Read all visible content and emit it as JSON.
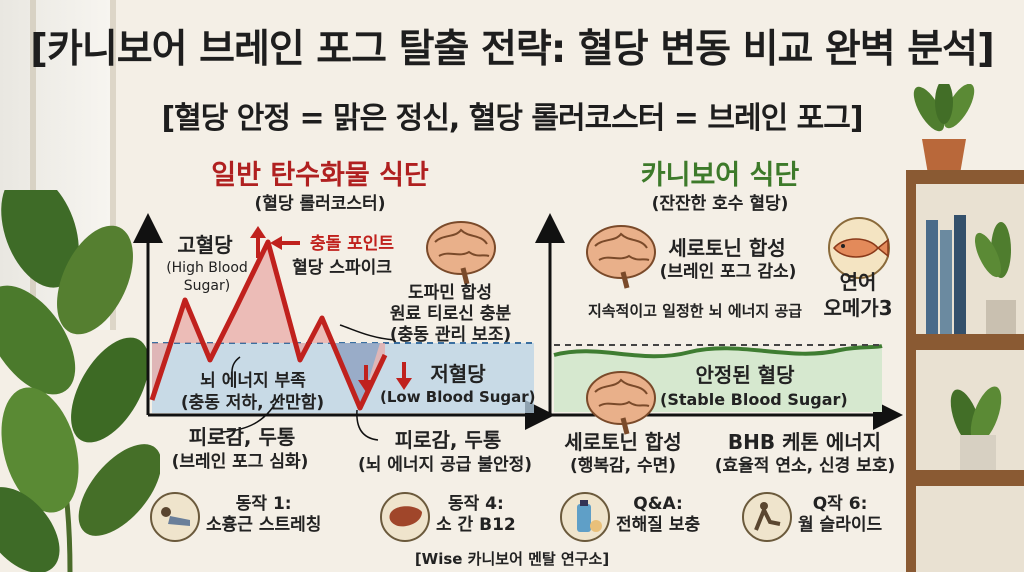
{
  "title": "[카니보어 브레인 포그 탈출 전략: 혈당 변동 비교 완벽 분석]",
  "subtitle": "[혈당 안정 = 맑은 정신, 혈당 롤러코스터 = 브레인 포그]",
  "left_panel": {
    "heading": "일반 탄수화물 식단",
    "subheading": "(혈당 롤러코스터)",
    "high_label": "고혈당",
    "high_label_en_1": "(High Blood",
    "high_label_en_2": "Sugar)",
    "impact_point": "충돌 포인트",
    "spike_label": "혈당 스파이크",
    "dopamine_1": "도파민 합성",
    "dopamine_2": "원료 티로신 충분",
    "dopamine_3": "(충동 관리 보조)",
    "low_label": "저혈당",
    "low_label_en": "(Low Blood Sugar)",
    "brain_energy_1": "뇌 에너지 부족",
    "brain_energy_2": "(충동 저하, 산만함)",
    "fatigue_a_1": "피로감, 두통",
    "fatigue_a_2": "(브레인 포그 심화)",
    "fatigue_b_1": "피로감, 두통",
    "fatigue_b_2": "(뇌 에너지 공급 불안정)"
  },
  "right_panel": {
    "heading": "카니보어 식단",
    "subheading": "(잔잔한 호수 혈당)",
    "serotonin_top_1": "세로토닌 합성",
    "serotonin_top_2": "(브레인 포그 감소)",
    "salmon_1": "연어",
    "salmon_2": "오메가3",
    "steady_energy": "지속적이고 일정한 뇌 에너지 공급",
    "stable_1": "안정된 혈당",
    "stable_2": "(Stable Blood Sugar)",
    "serotonin_bottom_1": "세로토닌 합성",
    "serotonin_bottom_2": "(행복감, 수면)",
    "bhb_1": "BHB 케톤 에너지",
    "bhb_2": "(효율적 연소, 신경 보호)"
  },
  "bottom_items": [
    {
      "line1": "동작 1:",
      "line2": "소흉근 스트레칭",
      "icon": "stretching-person-icon"
    },
    {
      "line1": "동작 4:",
      "line2": "소 간 B12",
      "icon": "liver-icon"
    },
    {
      "line1": "Q&A:",
      "line2": "전해질 보충",
      "icon": "electrolyte-bottle-icon"
    },
    {
      "line1": "Q작 6:",
      "line2": "월 슬라이드",
      "icon": "wall-slide-icon"
    }
  ],
  "footer": "[Wise 카니보어 멘탈 연구소]",
  "colors": {
    "spike_line": "#c0211d",
    "spike_fill": "#e8a7a2",
    "low_fill": "#b9d3e6",
    "stable_line": "#3f7d32",
    "stable_fill": "#d6e8cf",
    "heading_red": "#b02020",
    "heading_green": "#3d7a2a"
  }
}
